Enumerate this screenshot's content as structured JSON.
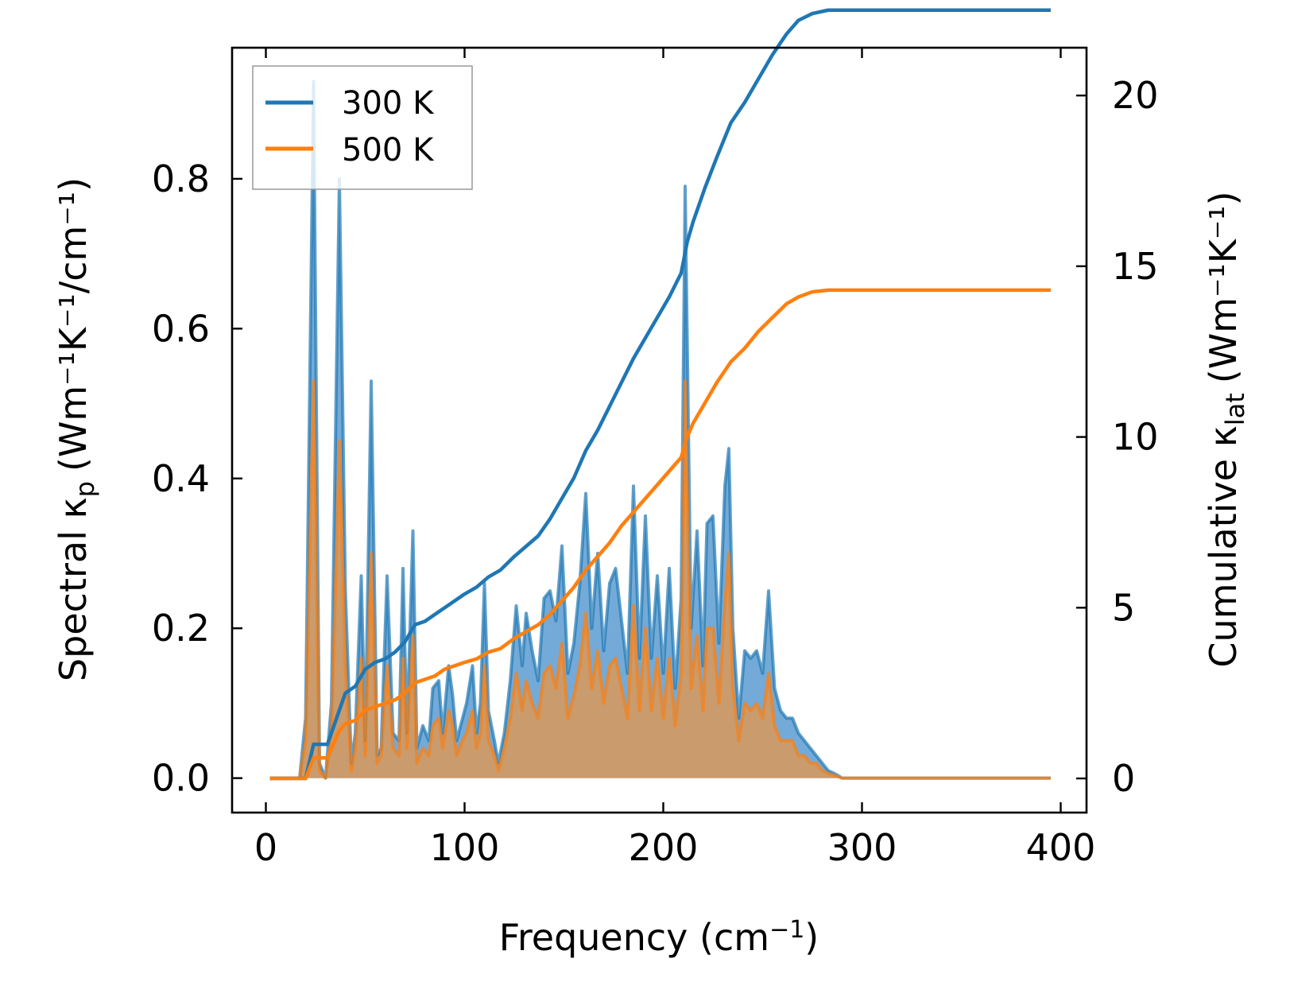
{
  "chart_data": {
    "type": "area",
    "xlabel": "Frequency (cm",
    "xlabel_sup": "−1",
    "xlabel_tail": ")",
    "ylabel_left": "Spectral κ",
    "ylabel_left_sub": "p",
    "ylabel_left_units": "(Wm⁻¹K⁻¹/cm⁻¹)",
    "ylabel_right": "Cumulative κ",
    "ylabel_right_sub": "lat",
    "ylabel_right_units": "(Wm⁻¹K⁻¹)",
    "xlim": [
      -17,
      413
    ],
    "ylim_left": [
      -0.046,
      0.975
    ],
    "ylim_right": [
      -1.0,
      21.4
    ],
    "x_ticks": [
      0,
      100,
      200,
      300,
      400
    ],
    "x_tick_labels": [
      "0",
      "100",
      "200",
      "300",
      "400"
    ],
    "y_left_ticks": [
      0.0,
      0.2,
      0.4,
      0.6,
      0.8
    ],
    "y_left_tick_labels": [
      "0.0",
      "0.2",
      "0.4",
      "0.6",
      "0.8"
    ],
    "y_right_ticks": [
      0,
      5,
      10,
      15,
      20
    ],
    "y_right_tick_labels": [
      "0",
      "5",
      "10",
      "15",
      "20"
    ],
    "legend_position": "top-left",
    "series": [
      {
        "name": "300 K",
        "color": "#1f77b4",
        "fill_color": "#5b9bd0",
        "spectral": [
          [
            2,
            0
          ],
          [
            17,
            0
          ],
          [
            20,
            0.08
          ],
          [
            24,
            0.93
          ],
          [
            27,
            0.02
          ],
          [
            30,
            0
          ],
          [
            33,
            0.1
          ],
          [
            37,
            0.8
          ],
          [
            40,
            0.25
          ],
          [
            43,
            0.02
          ],
          [
            45,
            0.06
          ],
          [
            48,
            0.27
          ],
          [
            50,
            0.05
          ],
          [
            53,
            0.53
          ],
          [
            56,
            0.03
          ],
          [
            58,
            0.04
          ],
          [
            61,
            0.27
          ],
          [
            64,
            0.06
          ],
          [
            67,
            0.05
          ],
          [
            69,
            0.28
          ],
          [
            71,
            0.06
          ],
          [
            74,
            0.33
          ],
          [
            76,
            0.04
          ],
          [
            79,
            0.07
          ],
          [
            82,
            0.05
          ],
          [
            84,
            0.12
          ],
          [
            87,
            0.13
          ],
          [
            89,
            0.06
          ],
          [
            92,
            0.15
          ],
          [
            94,
            0.11
          ],
          [
            96,
            0.05
          ],
          [
            99,
            0.08
          ],
          [
            101,
            0.1
          ],
          [
            104,
            0.15
          ],
          [
            106,
            0.06
          ],
          [
            108,
            0.1
          ],
          [
            110,
            0.26
          ],
          [
            112,
            0.09
          ],
          [
            115,
            0.05
          ],
          [
            117,
            0.02
          ],
          [
            120,
            0.06
          ],
          [
            123,
            0.13
          ],
          [
            126,
            0.23
          ],
          [
            129,
            0.15
          ],
          [
            131,
            0.22
          ],
          [
            134,
            0.17
          ],
          [
            137,
            0.13
          ],
          [
            140,
            0.24
          ],
          [
            143,
            0.25
          ],
          [
            146,
            0.21
          ],
          [
            149,
            0.31
          ],
          [
            152,
            0.14
          ],
          [
            155,
            0.18
          ],
          [
            158,
            0.26
          ],
          [
            161,
            0.38
          ],
          [
            164,
            0.2
          ],
          [
            167,
            0.3
          ],
          [
            170,
            0.17
          ],
          [
            173,
            0.26
          ],
          [
            176,
            0.28
          ],
          [
            179,
            0.21
          ],
          [
            182,
            0.14
          ],
          [
            185,
            0.39
          ],
          [
            188,
            0.16
          ],
          [
            191,
            0.35
          ],
          [
            194,
            0.16
          ],
          [
            197,
            0.27
          ],
          [
            200,
            0.14
          ],
          [
            203,
            0.28
          ],
          [
            206,
            0.12
          ],
          [
            209,
            0.24
          ],
          [
            211,
            0.79
          ],
          [
            214,
            0.2
          ],
          [
            217,
            0.33
          ],
          [
            220,
            0.15
          ],
          [
            222,
            0.34
          ],
          [
            225,
            0.35
          ],
          [
            228,
            0.18
          ],
          [
            231,
            0.39
          ],
          [
            233,
            0.44
          ],
          [
            235,
            0.2
          ],
          [
            238,
            0.08
          ],
          [
            241,
            0.17
          ],
          [
            244,
            0.16
          ],
          [
            247,
            0.17
          ],
          [
            250,
            0.14
          ],
          [
            253,
            0.25
          ],
          [
            256,
            0.12
          ],
          [
            259,
            0.09
          ],
          [
            262,
            0.08
          ],
          [
            265,
            0.08
          ],
          [
            268,
            0.06
          ],
          [
            271,
            0.05
          ],
          [
            274,
            0.04
          ],
          [
            277,
            0.03
          ],
          [
            280,
            0.02
          ],
          [
            283,
            0.01
          ],
          [
            287,
            0.005
          ],
          [
            290,
            0
          ],
          [
            395,
            0
          ]
        ],
        "cumulative": [
          [
            2,
            0
          ],
          [
            16,
            0
          ],
          [
            20,
            0
          ],
          [
            24,
            1
          ],
          [
            31,
            1
          ],
          [
            34,
            1.5
          ],
          [
            37,
            2
          ],
          [
            40,
            2.5
          ],
          [
            45,
            2.7
          ],
          [
            50,
            3.2
          ],
          [
            55,
            3.4
          ],
          [
            60,
            3.5
          ],
          [
            65,
            3.7
          ],
          [
            70,
            4
          ],
          [
            75,
            4.5
          ],
          [
            80,
            4.6
          ],
          [
            85,
            4.8
          ],
          [
            90,
            5
          ],
          [
            95,
            5.2
          ],
          [
            100,
            5.4
          ],
          [
            106,
            5.6
          ],
          [
            112,
            5.9
          ],
          [
            118,
            6.1
          ],
          [
            125,
            6.5
          ],
          [
            131,
            6.8
          ],
          [
            137,
            7.1
          ],
          [
            143,
            7.6
          ],
          [
            149,
            8.2
          ],
          [
            155,
            8.8
          ],
          [
            161,
            9.6
          ],
          [
            167,
            10.2
          ],
          [
            173,
            10.9
          ],
          [
            179,
            11.6
          ],
          [
            185,
            12.3
          ],
          [
            191,
            12.9
          ],
          [
            197,
            13.5
          ],
          [
            203,
            14.1
          ],
          [
            209,
            14.8
          ],
          [
            212,
            15.7
          ],
          [
            215,
            16.3
          ],
          [
            221,
            17.3
          ],
          [
            227,
            18.2
          ],
          [
            234,
            19.2
          ],
          [
            241,
            19.8
          ],
          [
            248,
            20.5
          ],
          [
            255,
            21.2
          ],
          [
            262,
            21.8
          ],
          [
            268,
            22.2
          ],
          [
            275,
            22.4
          ],
          [
            283,
            22.5
          ],
          [
            290,
            22.5
          ],
          [
            395,
            22.5
          ]
        ]
      },
      {
        "name": "500 K",
        "color": "#ff7f0e",
        "fill_color": "#c99b6d",
        "spectral": [
          [
            2,
            0
          ],
          [
            17,
            0
          ],
          [
            20,
            0.05
          ],
          [
            24,
            0.53
          ],
          [
            27,
            0.01
          ],
          [
            30,
            0
          ],
          [
            33,
            0.06
          ],
          [
            37,
            0.45
          ],
          [
            40,
            0.15
          ],
          [
            43,
            0.01
          ],
          [
            45,
            0.04
          ],
          [
            48,
            0.16
          ],
          [
            50,
            0.03
          ],
          [
            53,
            0.3
          ],
          [
            56,
            0.02
          ],
          [
            58,
            0.03
          ],
          [
            61,
            0.15
          ],
          [
            64,
            0.04
          ],
          [
            67,
            0.03
          ],
          [
            69,
            0.16
          ],
          [
            71,
            0.04
          ],
          [
            74,
            0.19
          ],
          [
            76,
            0.02
          ],
          [
            79,
            0.04
          ],
          [
            82,
            0.03
          ],
          [
            84,
            0.07
          ],
          [
            87,
            0.08
          ],
          [
            89,
            0.04
          ],
          [
            92,
            0.09
          ],
          [
            94,
            0.07
          ],
          [
            96,
            0.03
          ],
          [
            99,
            0.05
          ],
          [
            101,
            0.06
          ],
          [
            104,
            0.09
          ],
          [
            106,
            0.04
          ],
          [
            108,
            0.06
          ],
          [
            110,
            0.15
          ],
          [
            112,
            0.05
          ],
          [
            115,
            0.03
          ],
          [
            117,
            0.01
          ],
          [
            120,
            0.04
          ],
          [
            123,
            0.08
          ],
          [
            126,
            0.14
          ],
          [
            129,
            0.09
          ],
          [
            131,
            0.13
          ],
          [
            134,
            0.1
          ],
          [
            137,
            0.08
          ],
          [
            140,
            0.14
          ],
          [
            143,
            0.15
          ],
          [
            146,
            0.12
          ],
          [
            149,
            0.18
          ],
          [
            152,
            0.08
          ],
          [
            155,
            0.11
          ],
          [
            158,
            0.15
          ],
          [
            161,
            0.22
          ],
          [
            164,
            0.12
          ],
          [
            167,
            0.17
          ],
          [
            170,
            0.1
          ],
          [
            173,
            0.15
          ],
          [
            176,
            0.16
          ],
          [
            179,
            0.12
          ],
          [
            182,
            0.08
          ],
          [
            185,
            0.23
          ],
          [
            188,
            0.09
          ],
          [
            191,
            0.2
          ],
          [
            194,
            0.09
          ],
          [
            197,
            0.16
          ],
          [
            200,
            0.08
          ],
          [
            203,
            0.16
          ],
          [
            206,
            0.07
          ],
          [
            209,
            0.14
          ],
          [
            211,
            0.53
          ],
          [
            214,
            0.12
          ],
          [
            217,
            0.19
          ],
          [
            220,
            0.09
          ],
          [
            222,
            0.2
          ],
          [
            225,
            0.2
          ],
          [
            228,
            0.1
          ],
          [
            231,
            0.23
          ],
          [
            233,
            0.3
          ],
          [
            235,
            0.12
          ],
          [
            238,
            0.05
          ],
          [
            241,
            0.1
          ],
          [
            244,
            0.09
          ],
          [
            247,
            0.1
          ],
          [
            250,
            0.08
          ],
          [
            253,
            0.14
          ],
          [
            256,
            0.07
          ],
          [
            259,
            0.05
          ],
          [
            262,
            0.05
          ],
          [
            265,
            0.05
          ],
          [
            268,
            0.03
          ],
          [
            271,
            0.03
          ],
          [
            274,
            0.02
          ],
          [
            277,
            0.02
          ],
          [
            280,
            0.01
          ],
          [
            283,
            0.006
          ],
          [
            287,
            0.003
          ],
          [
            290,
            0
          ],
          [
            395,
            0
          ]
        ],
        "cumulative": [
          [
            2,
            0
          ],
          [
            16,
            0
          ],
          [
            20,
            0
          ],
          [
            24,
            0.6
          ],
          [
            31,
            0.6
          ],
          [
            34,
            1.0
          ],
          [
            37,
            1.4
          ],
          [
            40,
            1.6
          ],
          [
            45,
            1.7
          ],
          [
            50,
            2.0
          ],
          [
            55,
            2.1
          ],
          [
            60,
            2.2
          ],
          [
            65,
            2.3
          ],
          [
            70,
            2.5
          ],
          [
            75,
            2.8
          ],
          [
            80,
            2.9
          ],
          [
            85,
            3.0
          ],
          [
            90,
            3.2
          ],
          [
            95,
            3.3
          ],
          [
            100,
            3.4
          ],
          [
            106,
            3.5
          ],
          [
            112,
            3.7
          ],
          [
            118,
            3.8
          ],
          [
            125,
            4.1
          ],
          [
            131,
            4.3
          ],
          [
            137,
            4.5
          ],
          [
            143,
            4.8
          ],
          [
            149,
            5.2
          ],
          [
            155,
            5.6
          ],
          [
            161,
            6.1
          ],
          [
            167,
            6.5
          ],
          [
            173,
            6.9
          ],
          [
            179,
            7.4
          ],
          [
            185,
            7.8
          ],
          [
            191,
            8.2
          ],
          [
            197,
            8.6
          ],
          [
            203,
            9.0
          ],
          [
            209,
            9.4
          ],
          [
            212,
            10.0
          ],
          [
            215,
            10.4
          ],
          [
            221,
            11.0
          ],
          [
            227,
            11.6
          ],
          [
            234,
            12.2
          ],
          [
            241,
            12.6
          ],
          [
            248,
            13.1
          ],
          [
            255,
            13.5
          ],
          [
            262,
            13.9
          ],
          [
            268,
            14.1
          ],
          [
            275,
            14.25
          ],
          [
            283,
            14.3
          ],
          [
            290,
            14.3
          ],
          [
            395,
            14.3
          ]
        ]
      }
    ]
  }
}
